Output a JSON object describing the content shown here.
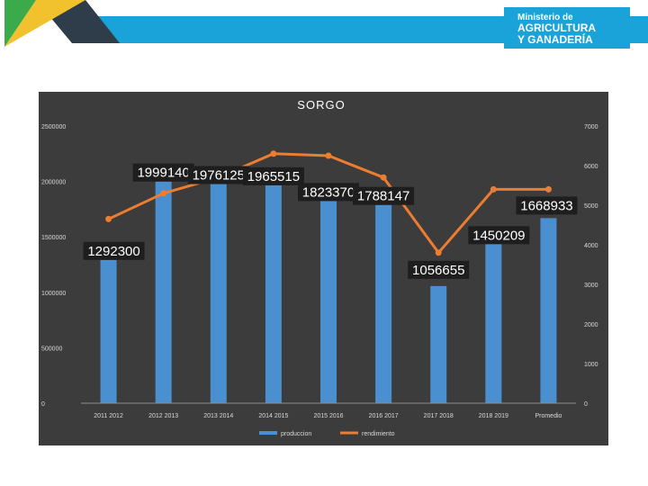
{
  "header": {
    "logo_line1": "Ministerio de",
    "logo_line2": "AGRICULTURA",
    "logo_line3": "Y GANADERÍA",
    "colors": {
      "band": "#1aa3d8",
      "dark_triangle": "#2f3c4a",
      "yellow": "#f2c12e",
      "green": "#3aaa4b",
      "logo_box": "#1aa3d8"
    }
  },
  "chart_data": {
    "type": "bar",
    "title": "SORGO",
    "categories": [
      "2011 2012",
      "2012 2013",
      "2013 2014",
      "2014 2015",
      "2015 2016",
      "2016 2017",
      "2017 2018",
      "2018 2019",
      "Promedio"
    ],
    "series": [
      {
        "name": "produccion",
        "kind": "bar",
        "axis": "left",
        "color": "#4a90d0",
        "values": [
          1292300,
          1999140,
          1976125,
          1965515,
          1823370,
          1788147,
          1056655,
          1450209,
          1668933
        ],
        "labels": [
          "1292300",
          "1999140",
          "1976125",
          "1965515",
          "1823370",
          "1788147",
          "1056655",
          "1450209",
          "1668933"
        ]
      },
      {
        "name": "rendimiento",
        "kind": "line",
        "axis": "right",
        "color": "#ed7d31",
        "values": [
          4650,
          5300,
          5700,
          6300,
          6250,
          5700,
          3800,
          5400,
          5400
        ]
      }
    ],
    "y_left": {
      "min": 0,
      "max": 2500000,
      "ticks": [
        "0",
        "500000",
        "1000000",
        "1500000",
        "2000000",
        "2500000"
      ]
    },
    "y_right": {
      "min": 0,
      "max": 7000,
      "ticks": [
        "0",
        "1000",
        "2000",
        "3000",
        "4000",
        "5000",
        "6000",
        "7000"
      ]
    },
    "grid": false,
    "legend": {
      "position": "bottom"
    },
    "colors": {
      "background": "#3c3c3c",
      "text": "#d9d9d9",
      "label_box": "#1e1e1e",
      "label_text": "#ffffff"
    }
  }
}
